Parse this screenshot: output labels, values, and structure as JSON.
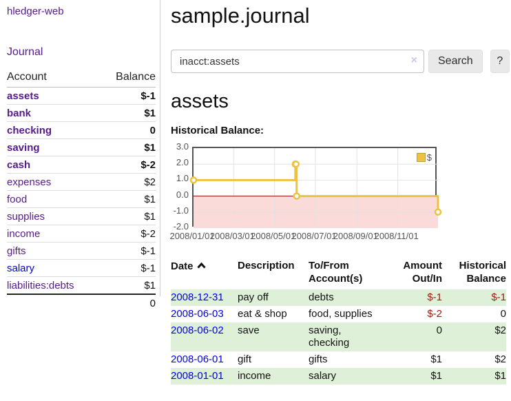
{
  "sidebar": {
    "app_title": "hledger-web",
    "nav_journal": "Journal",
    "accounts_table": {
      "headers": {
        "account": "Account",
        "balance": "Balance"
      },
      "rows": [
        {
          "label": "assets",
          "balance": "$-1",
          "level": 1,
          "bold": true,
          "balance_style": "neg-strong",
          "link_style": "purple"
        },
        {
          "label": "bank",
          "balance": "$1",
          "level": 2,
          "bold": true,
          "balance_style": "pos",
          "link_style": "purple"
        },
        {
          "label": "checking",
          "balance": "0",
          "level": 3,
          "bold": true,
          "balance_style": "pos",
          "link_style": "purple"
        },
        {
          "label": "saving",
          "balance": "$1",
          "level": 3,
          "bold": true,
          "balance_style": "pos",
          "link_style": "purple"
        },
        {
          "label": "cash",
          "balance": "$-2",
          "level": 2,
          "bold": true,
          "balance_style": "neg-strong",
          "link_style": "purple"
        },
        {
          "label": "expenses",
          "balance": "$2",
          "level": 1,
          "bold": false,
          "balance_style": "pos",
          "link_style": "purple"
        },
        {
          "label": "food",
          "balance": "$1",
          "level": 2,
          "bold": false,
          "balance_style": "pos",
          "link_style": "purple"
        },
        {
          "label": "supplies",
          "balance": "$1",
          "level": 2,
          "bold": false,
          "balance_style": "pos",
          "link_style": "purple"
        },
        {
          "label": "income",
          "balance": "$-2",
          "level": 1,
          "bold": false,
          "balance_style": "neg-light",
          "link_style": "purple"
        },
        {
          "label": "gifts",
          "balance": "$-1",
          "level": 2,
          "bold": false,
          "balance_style": "neg-light",
          "link_style": "purple"
        },
        {
          "label": "salary",
          "balance": "$-1",
          "level": 2,
          "bold": false,
          "balance_style": "neg-light",
          "link_style": "blue"
        },
        {
          "label": "liabilities:debts",
          "balance": "$1",
          "level": 1,
          "bold": false,
          "balance_style": "pos",
          "link_style": "purple"
        }
      ],
      "total": "0"
    }
  },
  "main": {
    "title": "sample.journal",
    "search": {
      "value": "inacct:assets",
      "clear_icon": "×",
      "button_label": "Search",
      "help_label": "?"
    },
    "account_heading": "assets",
    "chart_label": "Historical Balance:"
  },
  "chart_data": {
    "type": "line",
    "title": "Historical Balance:",
    "step": true,
    "series": [
      {
        "name": "$",
        "color": "#edc240",
        "points": [
          {
            "date": "2008-01-01",
            "day": 0,
            "y": 1
          },
          {
            "date": "2008-06-01",
            "day": 152,
            "y": 2
          },
          {
            "date": "2008-06-02",
            "day": 153,
            "y": 2
          },
          {
            "date": "2008-06-03",
            "day": 154,
            "y": 0
          },
          {
            "date": "2008-12-31",
            "day": 365,
            "y": -1
          }
        ]
      }
    ],
    "ylim": [
      -2,
      3
    ],
    "xlim_days": [
      0,
      365
    ],
    "y_ticks": [
      "3.0",
      "2.0",
      "1.0",
      "0.0",
      "-1.0",
      "-2.0"
    ],
    "y_tick_values": [
      3,
      2,
      1,
      0,
      -1,
      -2
    ],
    "x_ticks": [
      {
        "label": "2008/01/01",
        "day": 0
      },
      {
        "label": "2008/03/01",
        "day": 60
      },
      {
        "label": "2008/05/01",
        "day": 121
      },
      {
        "label": "2008/07/01",
        "day": 182
      },
      {
        "label": "2008/09/01",
        "day": 244
      },
      {
        "label": "2008/11/01",
        "day": 305
      }
    ],
    "legend": "$",
    "legend_position": "top-right",
    "grid": true,
    "colors": {
      "line": "#edc240",
      "negative_fill": "#fbdada",
      "zero_line": "#8b0000",
      "grid_line": "#e2e2e2",
      "border": "#545454"
    }
  },
  "register": {
    "headers": [
      "Date",
      "Description",
      "To/From Account(s)",
      "Amount Out/In",
      "Historical Balance"
    ],
    "sort_column": "Date",
    "sort_direction": "ascending",
    "rows": [
      {
        "date": "2008-12-31",
        "description": "pay off",
        "accounts": "debts",
        "amount": "$-1",
        "amount_neg": true,
        "balance": "$-1",
        "balance_neg": true
      },
      {
        "date": "2008-06-03",
        "description": "eat & shop",
        "accounts": "food, supplies",
        "amount": "$-2",
        "amount_neg": true,
        "balance": "0",
        "balance_neg": false
      },
      {
        "date": "2008-06-02",
        "description": "save",
        "accounts": "saving, checking",
        "amount": "0",
        "amount_neg": false,
        "balance": "$2",
        "balance_neg": false
      },
      {
        "date": "2008-06-01",
        "description": "gift",
        "accounts": "gifts",
        "amount": "$1",
        "amount_neg": false,
        "balance": "$2",
        "balance_neg": false
      },
      {
        "date": "2008-01-01",
        "description": "income",
        "accounts": "salary",
        "amount": "$1",
        "amount_neg": false,
        "balance": "$1",
        "balance_neg": false
      }
    ]
  },
  "colors": {
    "link_purple": "#551a8b",
    "link_blue": "#0000e0",
    "negative_strong": "#9c1a10",
    "negative_light": "#c28383",
    "row_stripe_green": "#dff0d8",
    "chart_yellow": "#edc240"
  }
}
